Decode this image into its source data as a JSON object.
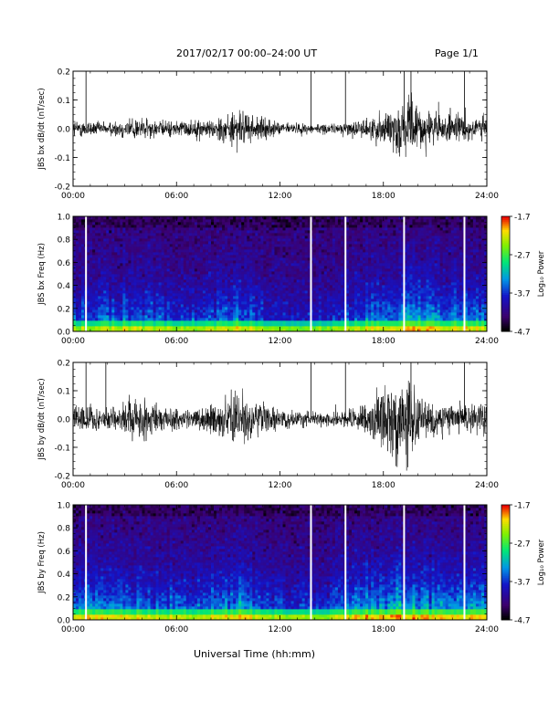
{
  "header": {
    "date_title": "2017/02/17  00:00–24:00 UT",
    "page": "Page 1/1"
  },
  "xlabel": "Universal Time (hh:mm)",
  "chart_data": [
    {
      "type": "line",
      "ylabel": "JBS bx dB/dt (nT/sec)",
      "xlim": [
        0,
        24
      ],
      "ylim": [
        -0.2,
        0.2
      ],
      "xticks": [
        "00:00",
        "06:00",
        "12:00",
        "18:00",
        "24:00"
      ],
      "yticks": [
        "0.2",
        "0.1",
        "0.0",
        "-0.1",
        "-0.2"
      ],
      "xtick_values": [
        0,
        6,
        12,
        18,
        24
      ],
      "ytick_values": [
        0.2,
        0.1,
        0.0,
        -0.1,
        -0.2
      ],
      "spike_hours": [
        0.75,
        13.8,
        15.8,
        19.2,
        19.6,
        22.7
      ],
      "spike_top": [
        0.2,
        0.2,
        0.2,
        0.2,
        0.2,
        0.2
      ],
      "amplitude_profile": [
        {
          "x": 0,
          "a": 0.03
        },
        {
          "x": 2,
          "a": 0.02
        },
        {
          "x": 3.5,
          "a": 0.04
        },
        {
          "x": 5,
          "a": 0.025
        },
        {
          "x": 8,
          "a": 0.03
        },
        {
          "x": 9.5,
          "a": 0.06
        },
        {
          "x": 10.5,
          "a": 0.04
        },
        {
          "x": 12,
          "a": 0.02
        },
        {
          "x": 15,
          "a": 0.015
        },
        {
          "x": 17,
          "a": 0.03
        },
        {
          "x": 18.5,
          "a": 0.07
        },
        {
          "x": 19.5,
          "a": 0.09
        },
        {
          "x": 21,
          "a": 0.05
        },
        {
          "x": 24,
          "a": 0.04
        }
      ]
    },
    {
      "type": "heatmap",
      "ylabel": "JBS bx Freq (Hz)",
      "colorbar_label": "Log₁₀ Power",
      "xlim": [
        0,
        24
      ],
      "ylim": [
        0.0,
        1.0
      ],
      "xticks": [
        "00:00",
        "06:00",
        "12:00",
        "18:00",
        "24:00"
      ],
      "yticks": [
        "1.0",
        "0.8",
        "0.6",
        "0.4",
        "0.2",
        "0.0"
      ],
      "xtick_values": [
        0,
        6,
        12,
        18,
        24
      ],
      "ytick_values": [
        1.0,
        0.8,
        0.6,
        0.4,
        0.2,
        0.0
      ],
      "clim": [
        -4.7,
        -1.7
      ],
      "cticks": [
        "-1.7",
        "-2.7",
        "-3.7",
        "-4.7"
      ],
      "ctick_values": [
        -1.7,
        -2.7,
        -3.7,
        -4.7
      ],
      "gap_hours": [
        0.75,
        13.8,
        15.8,
        19.2,
        22.7
      ],
      "activity_profile": [
        {
          "x": 0,
          "a": 0.55
        },
        {
          "x": 1.5,
          "a": 0.6
        },
        {
          "x": 3,
          "a": 0.65
        },
        {
          "x": 5,
          "a": 0.55
        },
        {
          "x": 7,
          "a": 0.5
        },
        {
          "x": 9.5,
          "a": 0.75
        },
        {
          "x": 11,
          "a": 0.5
        },
        {
          "x": 13,
          "a": 0.4
        },
        {
          "x": 15,
          "a": 0.45
        },
        {
          "x": 17,
          "a": 0.7
        },
        {
          "x": 19,
          "a": 0.85
        },
        {
          "x": 21,
          "a": 0.75
        },
        {
          "x": 24,
          "a": 0.7
        }
      ]
    },
    {
      "type": "line",
      "ylabel": "JBS by dB/dt (nT/sec)",
      "xlim": [
        0,
        24
      ],
      "ylim": [
        -0.2,
        0.2
      ],
      "xticks": [
        "00:00",
        "06:00",
        "12:00",
        "18:00",
        "24:00"
      ],
      "yticks": [
        "0.2",
        "0.1",
        "0.0",
        "-0.1",
        "-0.2"
      ],
      "xtick_values": [
        0,
        6,
        12,
        18,
        24
      ],
      "ytick_values": [
        0.2,
        0.1,
        0.0,
        -0.1,
        -0.2
      ],
      "spike_hours": [
        0.75,
        1.9,
        13.8,
        15.8,
        19.6,
        22.7
      ],
      "spike_top": [
        0.2,
        0.2,
        0.2,
        0.2,
        0.2,
        0.2
      ],
      "amplitude_profile": [
        {
          "x": 0,
          "a": 0.05
        },
        {
          "x": 2,
          "a": 0.04
        },
        {
          "x": 4,
          "a": 0.07
        },
        {
          "x": 5.5,
          "a": 0.04
        },
        {
          "x": 7,
          "a": 0.03
        },
        {
          "x": 9.5,
          "a": 0.08
        },
        {
          "x": 10.5,
          "a": 0.06
        },
        {
          "x": 12,
          "a": 0.03
        },
        {
          "x": 15,
          "a": 0.02
        },
        {
          "x": 17,
          "a": 0.05
        },
        {
          "x": 18.5,
          "a": 0.14
        },
        {
          "x": 19.5,
          "a": 0.12
        },
        {
          "x": 21,
          "a": 0.05
        },
        {
          "x": 24,
          "a": 0.05
        }
      ]
    },
    {
      "type": "heatmap",
      "ylabel": "JBS by Freq (Hz)",
      "colorbar_label": "Log₁₀ Power",
      "xlim": [
        0,
        24
      ],
      "ylim": [
        0.0,
        1.0
      ],
      "xticks": [
        "00:00",
        "06:00",
        "12:00",
        "18:00",
        "24:00"
      ],
      "yticks": [
        "1.0",
        "0.8",
        "0.6",
        "0.4",
        "0.2",
        "0.0"
      ],
      "xtick_values": [
        0,
        6,
        12,
        18,
        24
      ],
      "ytick_values": [
        1.0,
        0.8,
        0.6,
        0.4,
        0.2,
        0.0
      ],
      "clim": [
        -4.7,
        -1.7
      ],
      "cticks": [
        "-1.7",
        "-2.7",
        "-3.7",
        "-4.7"
      ],
      "ctick_values": [
        -1.7,
        -2.7,
        -3.7,
        -4.7
      ],
      "gap_hours": [
        0.75,
        13.8,
        15.8,
        19.2,
        22.7
      ],
      "activity_profile": [
        {
          "x": 0,
          "a": 0.75
        },
        {
          "x": 1.5,
          "a": 0.7
        },
        {
          "x": 3,
          "a": 0.75
        },
        {
          "x": 5,
          "a": 0.65
        },
        {
          "x": 7,
          "a": 0.6
        },
        {
          "x": 9.5,
          "a": 0.85
        },
        {
          "x": 11,
          "a": 0.6
        },
        {
          "x": 13,
          "a": 0.5
        },
        {
          "x": 15,
          "a": 0.55
        },
        {
          "x": 17,
          "a": 0.8
        },
        {
          "x": 19,
          "a": 0.9
        },
        {
          "x": 21,
          "a": 0.8
        },
        {
          "x": 24,
          "a": 0.75
        }
      ]
    }
  ]
}
